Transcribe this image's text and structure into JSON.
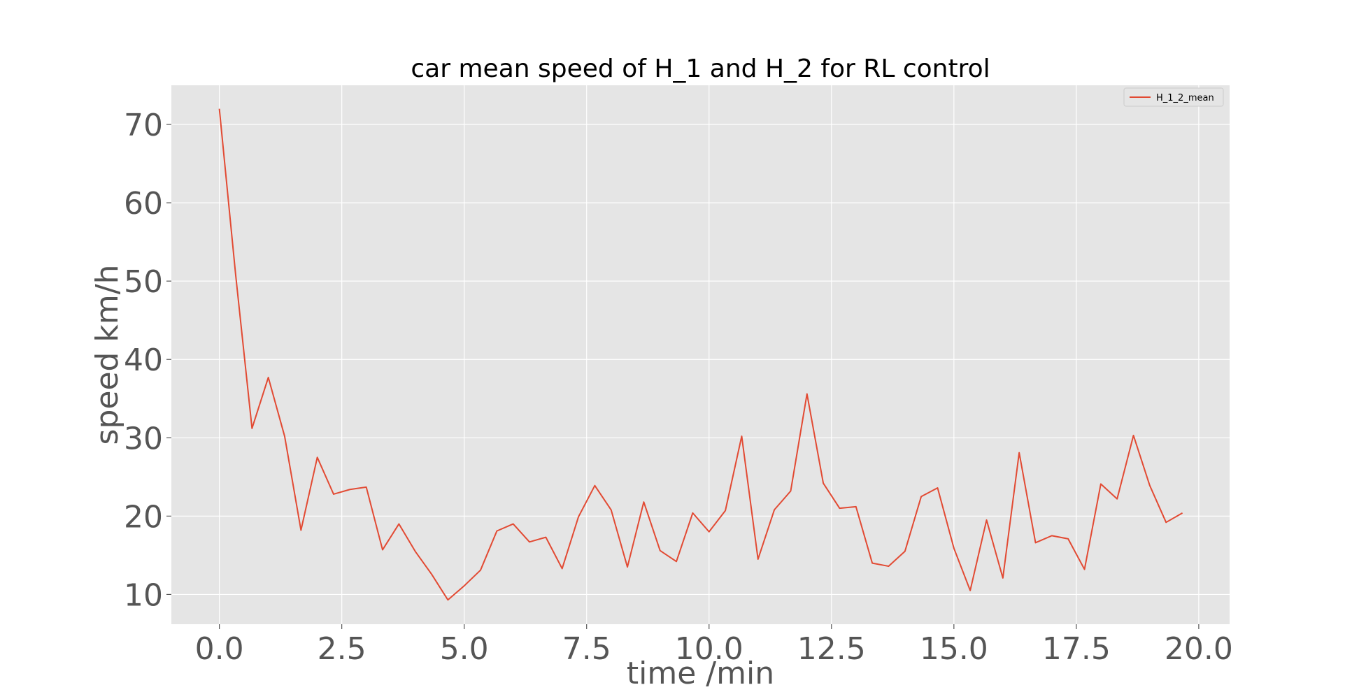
{
  "chart_data": {
    "type": "line",
    "title": "car mean speed of H_1 and H_2 for RL control",
    "xlabel": "time /min",
    "ylabel": "speed km/h",
    "xlim": [
      -0.98,
      20.63
    ],
    "ylim": [
      6.2,
      75.0
    ],
    "xticks": [
      0.0,
      2.5,
      5.0,
      7.5,
      10.0,
      12.5,
      15.0,
      17.5,
      20.0
    ],
    "xtick_labels": [
      "0.0",
      "2.5",
      "5.0",
      "7.5",
      "10.0",
      "12.5",
      "15.0",
      "17.5",
      "20.0"
    ],
    "yticks": [
      10,
      20,
      30,
      40,
      50,
      60,
      70
    ],
    "ytick_labels": [
      "10",
      "20",
      "30",
      "40",
      "50",
      "60",
      "70"
    ],
    "grid": true,
    "legend_position": "top-right",
    "colors": {
      "plot_background": "#E5E5E5",
      "line": "#E24A33",
      "grid": "#FFFFFF",
      "tick_text": "#555555"
    },
    "series": [
      {
        "name": "H_1_2_mean",
        "color": "#E24A33",
        "x": [
          0.0,
          0.333,
          0.667,
          1.0,
          1.333,
          1.667,
          2.0,
          2.333,
          2.667,
          3.0,
          3.333,
          3.667,
          4.0,
          4.333,
          4.667,
          5.0,
          5.333,
          5.667,
          6.0,
          6.333,
          6.667,
          7.0,
          7.333,
          7.667,
          8.0,
          8.333,
          8.667,
          9.0,
          9.333,
          9.667,
          10.0,
          10.333,
          10.667,
          11.0,
          11.333,
          11.667,
          12.0,
          12.333,
          12.667,
          13.0,
          13.333,
          13.667,
          14.0,
          14.333,
          14.667,
          15.0,
          15.333,
          15.667,
          16.0,
          16.333,
          16.667,
          17.0,
          17.333,
          17.667,
          18.0,
          18.333,
          18.667,
          19.0,
          19.333,
          19.667
        ],
        "y": [
          72.0,
          50.8,
          31.2,
          37.7,
          30.2,
          18.2,
          27.5,
          22.8,
          23.4,
          23.7,
          15.7,
          19.0,
          15.5,
          12.6,
          9.3,
          11.1,
          13.1,
          18.1,
          19.0,
          16.7,
          17.3,
          13.3,
          19.9,
          23.9,
          20.8,
          13.5,
          21.8,
          15.6,
          14.2,
          20.4,
          18.0,
          20.7,
          30.2,
          14.5,
          20.8,
          23.2,
          35.6,
          24.2,
          21.0,
          21.2,
          14.0,
          13.6,
          15.5,
          22.5,
          23.6,
          15.9,
          10.5,
          19.5,
          12.1,
          28.1,
          16.6,
          17.5,
          17.1,
          13.2,
          24.1,
          22.2,
          30.3,
          23.9,
          19.2,
          20.4
        ]
      }
    ]
  }
}
